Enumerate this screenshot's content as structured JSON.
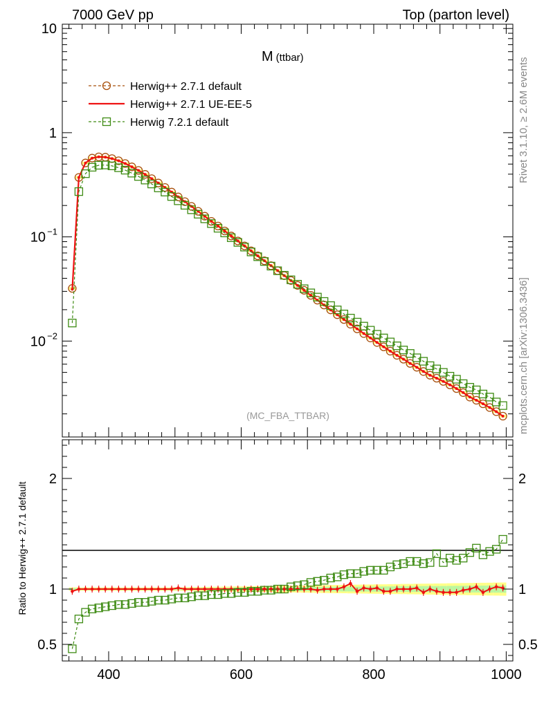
{
  "header": {
    "energy_label": "7000 GeV pp",
    "process_label": "Top (parton level)"
  },
  "side": {
    "rivet_label": "Rivet 3.1.10, ≥ 2.6M events",
    "site_label": "mcplots.cern.ch [arXiv:1306.3436]"
  },
  "chart_data": [
    {
      "type": "line",
      "panel": "main",
      "title_main": "M",
      "title_sub": "(ttbar)",
      "watermark": "(MC_FBA_TTBAR)",
      "x_scale": "linear",
      "y_scale": "log",
      "xlim": [
        330,
        1010
      ],
      "ylim": [
        0.0012,
        11
      ],
      "y_ticks": [
        {
          "value": 10,
          "label": "10"
        },
        {
          "value": 1,
          "label": "1"
        },
        {
          "value": 0.1,
          "label": "10",
          "sup": "−1"
        },
        {
          "value": 0.01,
          "label": "10",
          "sup": "−2"
        }
      ],
      "legend_position": "top-left",
      "x": [
        345,
        355,
        365,
        375,
        385,
        395,
        405,
        415,
        425,
        435,
        445,
        455,
        465,
        475,
        485,
        495,
        505,
        515,
        525,
        535,
        545,
        555,
        565,
        575,
        585,
        595,
        605,
        615,
        625,
        635,
        645,
        655,
        665,
        675,
        685,
        695,
        705,
        715,
        725,
        735,
        745,
        755,
        765,
        775,
        785,
        795,
        805,
        815,
        825,
        835,
        845,
        855,
        865,
        875,
        885,
        895,
        905,
        915,
        925,
        935,
        945,
        955,
        965,
        975,
        985,
        995
      ],
      "series": [
        {
          "name": "Herwig++ 2.7.1 default",
          "color": "#a84f0b",
          "marker": "circle",
          "line": "dashed",
          "values": [
            0.032,
            0.372,
            0.512,
            0.57,
            0.586,
            0.582,
            0.564,
            0.538,
            0.506,
            0.47,
            0.434,
            0.398,
            0.362,
            0.329,
            0.298,
            0.269,
            0.242,
            0.218,
            0.196,
            0.176,
            0.158,
            0.141,
            0.127,
            0.114,
            0.102,
            0.0913,
            0.0819,
            0.0734,
            0.0658,
            0.059,
            0.0529,
            0.0474,
            0.0425,
            0.0381,
            0.0342,
            0.0307,
            0.0275,
            0.0247,
            0.0222,
            0.0199,
            0.0179,
            0.0161,
            0.0145,
            0.0131,
            0.0118,
            0.0107,
            0.0097,
            0.0088,
            0.008,
            0.0073,
            0.0067,
            0.0061,
            0.0056,
            0.0051,
            0.0047,
            0.0044,
            0.0041,
            0.0038,
            0.0035,
            0.0032,
            0.0029,
            0.0027,
            0.0025,
            0.0023,
            0.0021,
            0.0019
          ]
        },
        {
          "name": "Herwig++ 2.7.1 UE-EE-5",
          "color": "#ee1111",
          "marker": "none",
          "line": "solid",
          "values": [
            0.0314,
            0.372,
            0.512,
            0.57,
            0.586,
            0.582,
            0.564,
            0.538,
            0.506,
            0.47,
            0.434,
            0.398,
            0.362,
            0.329,
            0.298,
            0.269,
            0.242,
            0.218,
            0.196,
            0.176,
            0.158,
            0.141,
            0.127,
            0.114,
            0.102,
            0.0913,
            0.0819,
            0.0734,
            0.0658,
            0.059,
            0.0529,
            0.0474,
            0.0425,
            0.0381,
            0.0342,
            0.0307,
            0.0275,
            0.0247,
            0.0222,
            0.0199,
            0.0179,
            0.0161,
            0.0145,
            0.0131,
            0.0118,
            0.0107,
            0.0097,
            0.0088,
            0.008,
            0.0073,
            0.0067,
            0.0061,
            0.0056,
            0.0051,
            0.0047,
            0.0044,
            0.0041,
            0.0038,
            0.0035,
            0.0032,
            0.0029,
            0.0027,
            0.0025,
            0.0023,
            0.0021,
            0.0019
          ]
        },
        {
          "name": "Herwig 7.2.1 default",
          "color": "#3d8a12",
          "marker": "square",
          "line": "dashed",
          "values": [
            0.0149,
            0.272,
            0.404,
            0.466,
            0.487,
            0.49,
            0.48,
            0.461,
            0.437,
            0.409,
            0.38,
            0.351,
            0.322,
            0.295,
            0.269,
            0.244,
            0.222,
            0.201,
            0.182,
            0.165,
            0.149,
            0.134,
            0.121,
            0.109,
            0.0982,
            0.0885,
            0.0797,
            0.0717,
            0.0645,
            0.058,
            0.0524,
            0.0473,
            0.0428,
            0.0387,
            0.0351,
            0.0318,
            0.029,
            0.0264,
            0.024,
            0.0219,
            0.0199,
            0.0182,
            0.0166,
            0.0152,
            0.0139,
            0.0127,
            0.0116,
            0.0107,
            0.0098,
            0.009,
            0.0082,
            0.0076,
            0.0069,
            0.0064,
            0.0058,
            0.0054,
            0.005,
            0.0046,
            0.0043,
            0.0039,
            0.0036,
            0.0034,
            0.0031,
            0.0029,
            0.0026,
            0.0024
          ]
        }
      ]
    },
    {
      "type": "line",
      "panel": "ratio",
      "ylabel": "Ratio to Herwig++ 2.7.1 default",
      "x_scale": "linear",
      "y_scale": "linear",
      "xlim": [
        330,
        1010
      ],
      "ylim": [
        0.35,
        2.35
      ],
      "x_ticks": [
        400,
        600,
        800,
        1000
      ],
      "y_ticks": [
        0.5,
        1,
        2
      ],
      "y_tick_labels": [
        "0.5",
        "1",
        "2"
      ],
      "reference_band": {
        "color": "#ffff88",
        "inner_color": "#bbf7a0"
      },
      "series": [
        {
          "name": "Herwig++ 2.7.1 UE-EE-5",
          "color": "#ee1111",
          "values": [
            0.98,
            1.0,
            1.0,
            1.0,
            1.0,
            1.0,
            1.0,
            1.0,
            1.0,
            1.0,
            1.0,
            1.0,
            1.0,
            1.0,
            1.0,
            1.0,
            1.01,
            1.0,
            1.0,
            1.0,
            1.0,
            1.0,
            1.0,
            1.0,
            1.0,
            1.0,
            1.0,
            1.0,
            1.0,
            1.0,
            1.0,
            1.0,
            1.0,
            1.0,
            1.0,
            1.0,
            1.0,
            0.99,
            1.0,
            1.0,
            1.0,
            1.02,
            1.05,
            0.98,
            1.01,
            1.0,
            1.01,
            0.98,
            0.98,
            1.0,
            1.0,
            1.0,
            1.01,
            0.97,
            1.0,
            0.98,
            0.97,
            0.97,
            0.97,
            0.99,
            1.0,
            1.02,
            0.97,
            1.0,
            1.02,
            1.01
          ]
        },
        {
          "name": "Herwig 7.2.1 default",
          "color": "#3d8a12",
          "values": [
            0.46,
            0.73,
            0.79,
            0.82,
            0.83,
            0.84,
            0.85,
            0.86,
            0.86,
            0.87,
            0.88,
            0.88,
            0.89,
            0.9,
            0.9,
            0.91,
            0.92,
            0.92,
            0.93,
            0.94,
            0.94,
            0.95,
            0.95,
            0.96,
            0.96,
            0.97,
            0.97,
            0.98,
            0.98,
            0.99,
            0.99,
            1.0,
            1.0,
            1.02,
            1.03,
            1.04,
            1.06,
            1.07,
            1.08,
            1.1,
            1.11,
            1.13,
            1.14,
            1.14,
            1.16,
            1.17,
            1.17,
            1.17,
            1.2,
            1.22,
            1.23,
            1.25,
            1.25,
            1.23,
            1.24,
            1.32,
            1.24,
            1.28,
            1.26,
            1.28,
            1.33,
            1.37,
            1.31,
            1.34,
            1.36,
            1.45
          ]
        }
      ]
    }
  ]
}
